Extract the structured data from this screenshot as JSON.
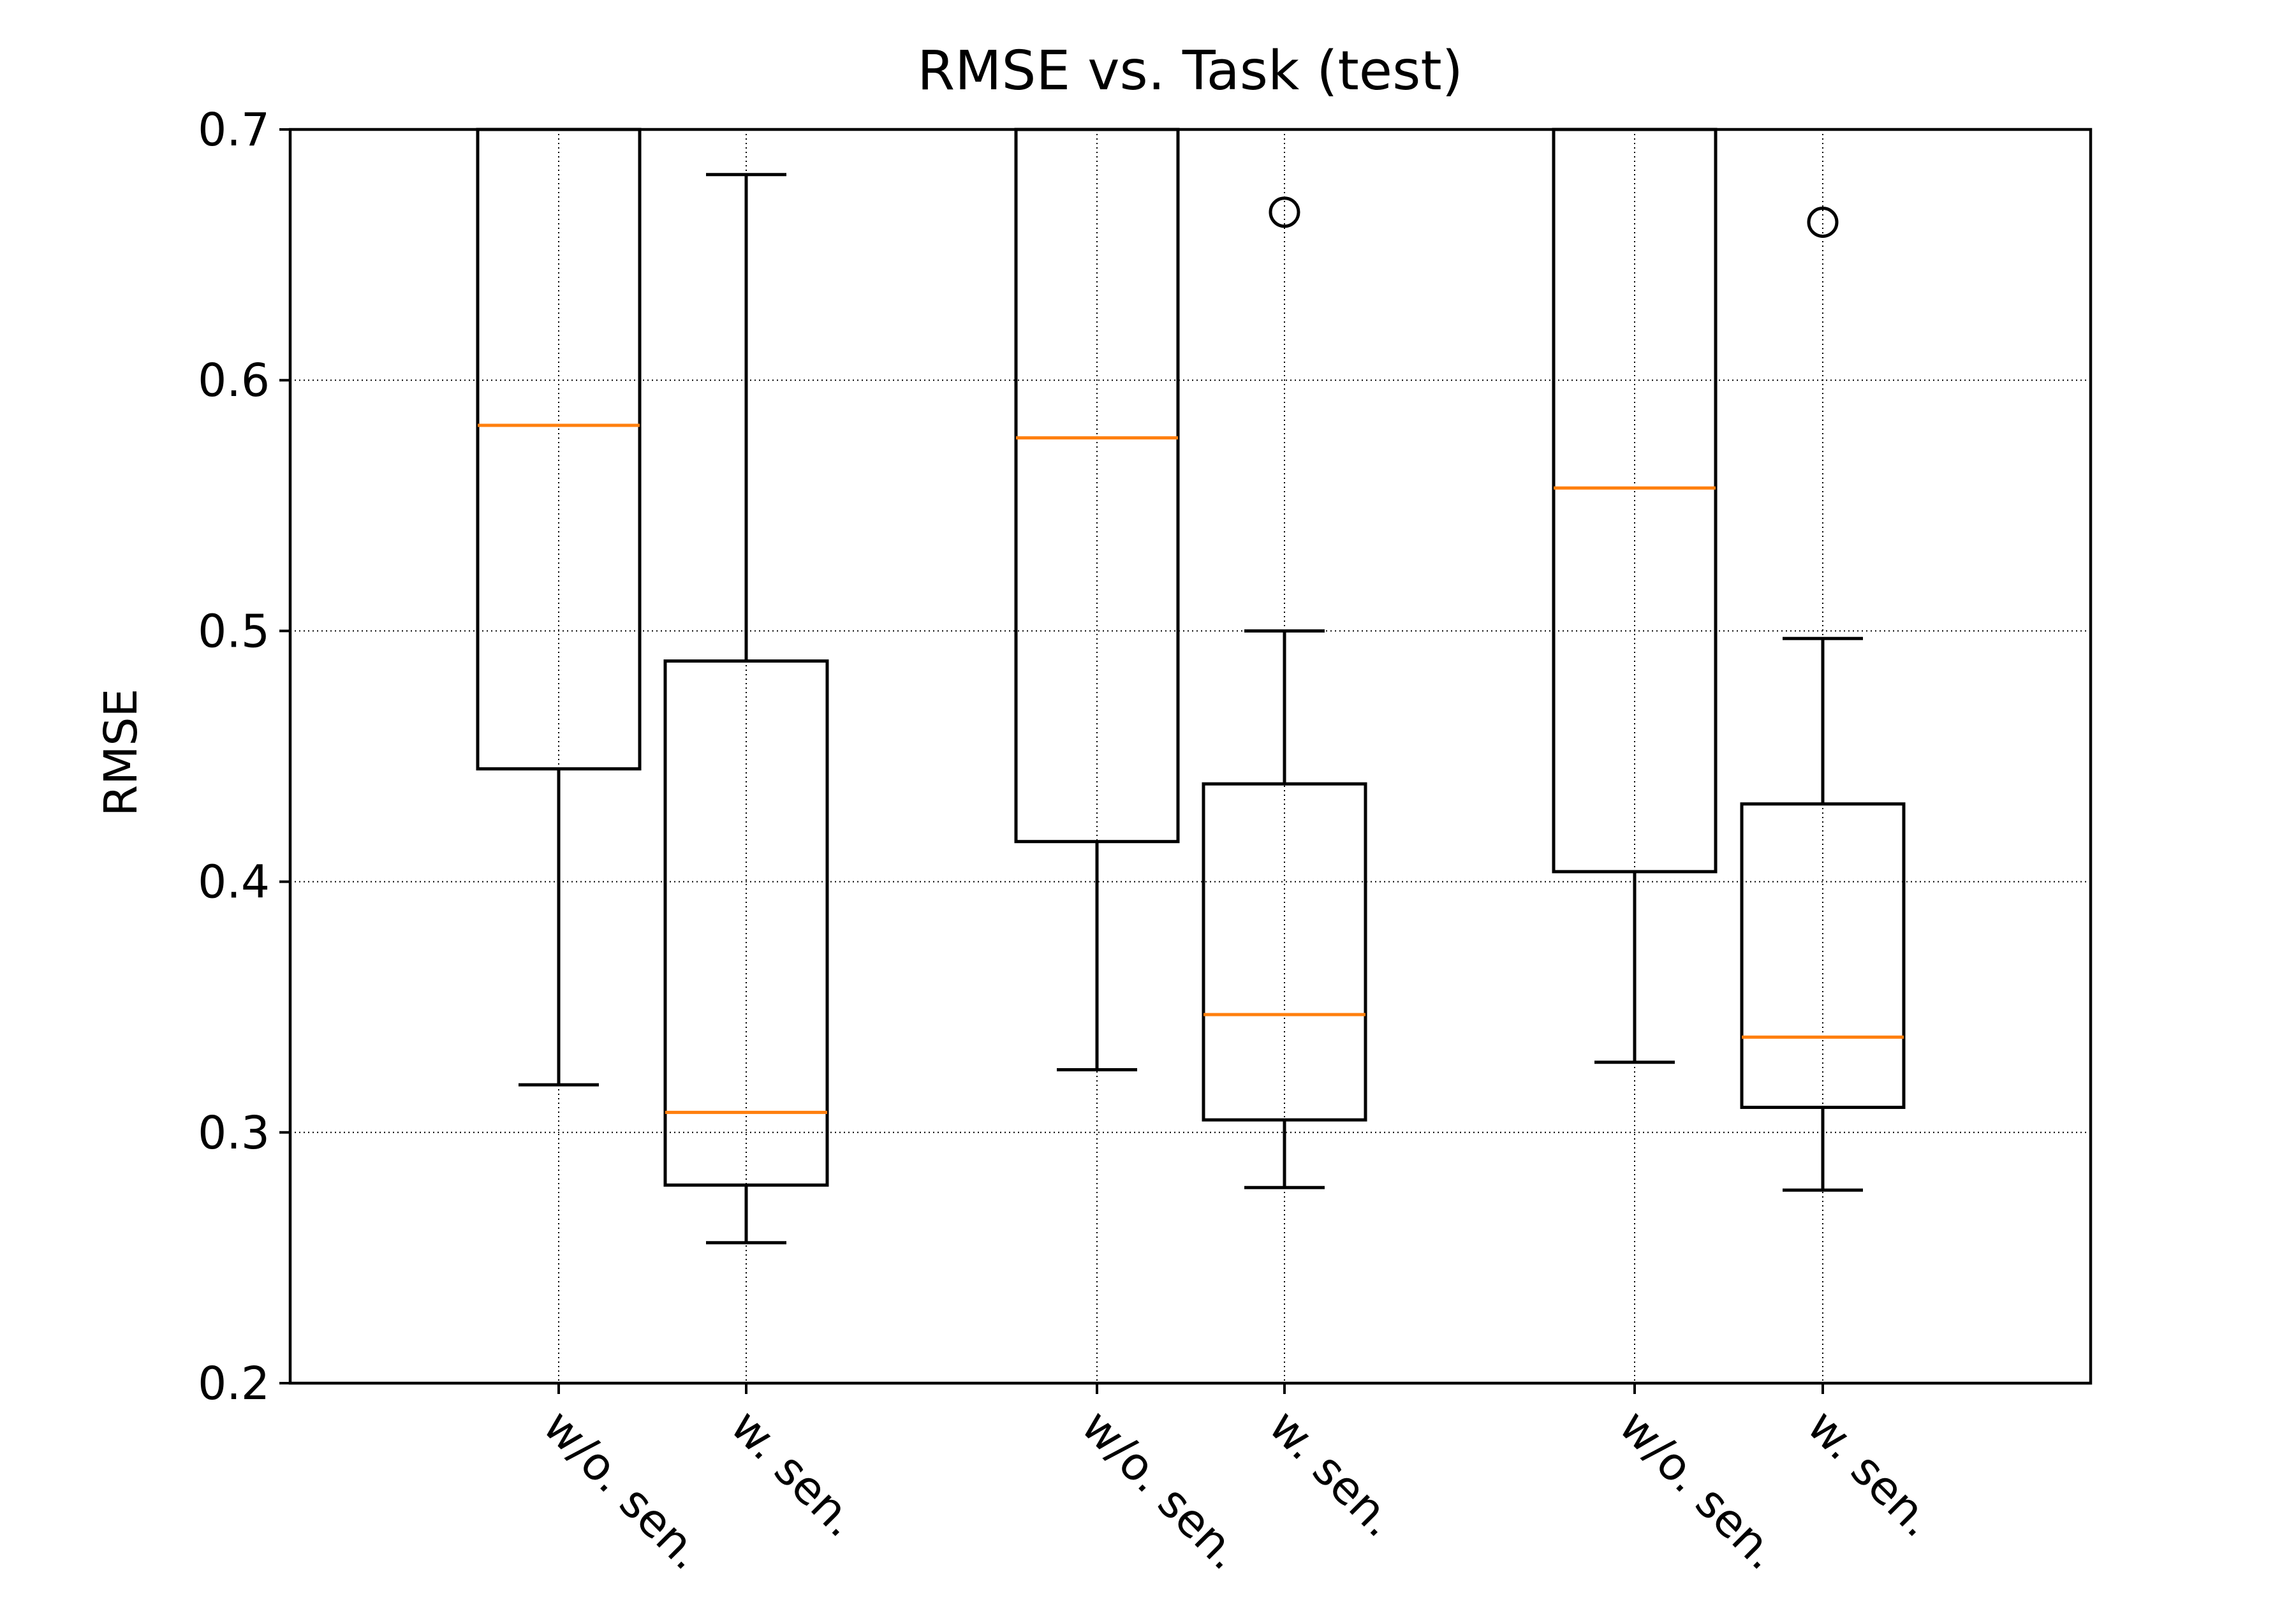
{
  "chart_data": {
    "type": "box",
    "title": "RMSE vs. Task (test)",
    "xlabel": "",
    "ylabel": "RMSE",
    "ylim": [
      0.2,
      0.7
    ],
    "yticks": [
      "0.2",
      "0.3",
      "0.4",
      "0.5",
      "0.6",
      "0.7"
    ],
    "grid": true,
    "categories": [
      "w/o. sen.",
      "w. sen.",
      "w/o. sen.",
      "w. sen.",
      "w/o. sen.",
      "w. sen."
    ],
    "boxes": [
      {
        "label": "w/o. sen.",
        "whisker_low": 0.319,
        "q1": 0.445,
        "median": 0.582,
        "q3": 0.7,
        "whisker_high": null,
        "outliers": []
      },
      {
        "label": "w. sen.",
        "whisker_low": 0.256,
        "q1": 0.279,
        "median": 0.308,
        "q3": 0.488,
        "whisker_high": 0.682,
        "outliers": []
      },
      {
        "label": "w/o. sen.",
        "whisker_low": 0.325,
        "q1": 0.416,
        "median": 0.577,
        "q3": 0.7,
        "whisker_high": null,
        "outliers": []
      },
      {
        "label": "w. sen.",
        "whisker_low": 0.278,
        "q1": 0.305,
        "median": 0.347,
        "q3": 0.439,
        "whisker_high": 0.5,
        "outliers": [
          0.667
        ]
      },
      {
        "label": "w/o. sen.",
        "whisker_low": 0.328,
        "q1": 0.404,
        "median": 0.557,
        "q3": 0.7,
        "whisker_high": null,
        "outliers": []
      },
      {
        "label": "w. sen.",
        "whisker_low": 0.277,
        "q1": 0.31,
        "median": 0.338,
        "q3": 0.431,
        "whisker_high": 0.497,
        "outliers": [
          0.663
        ]
      }
    ],
    "colors": {
      "box": "#000000",
      "median": "#ff7f0e",
      "grid": "#000000"
    }
  }
}
